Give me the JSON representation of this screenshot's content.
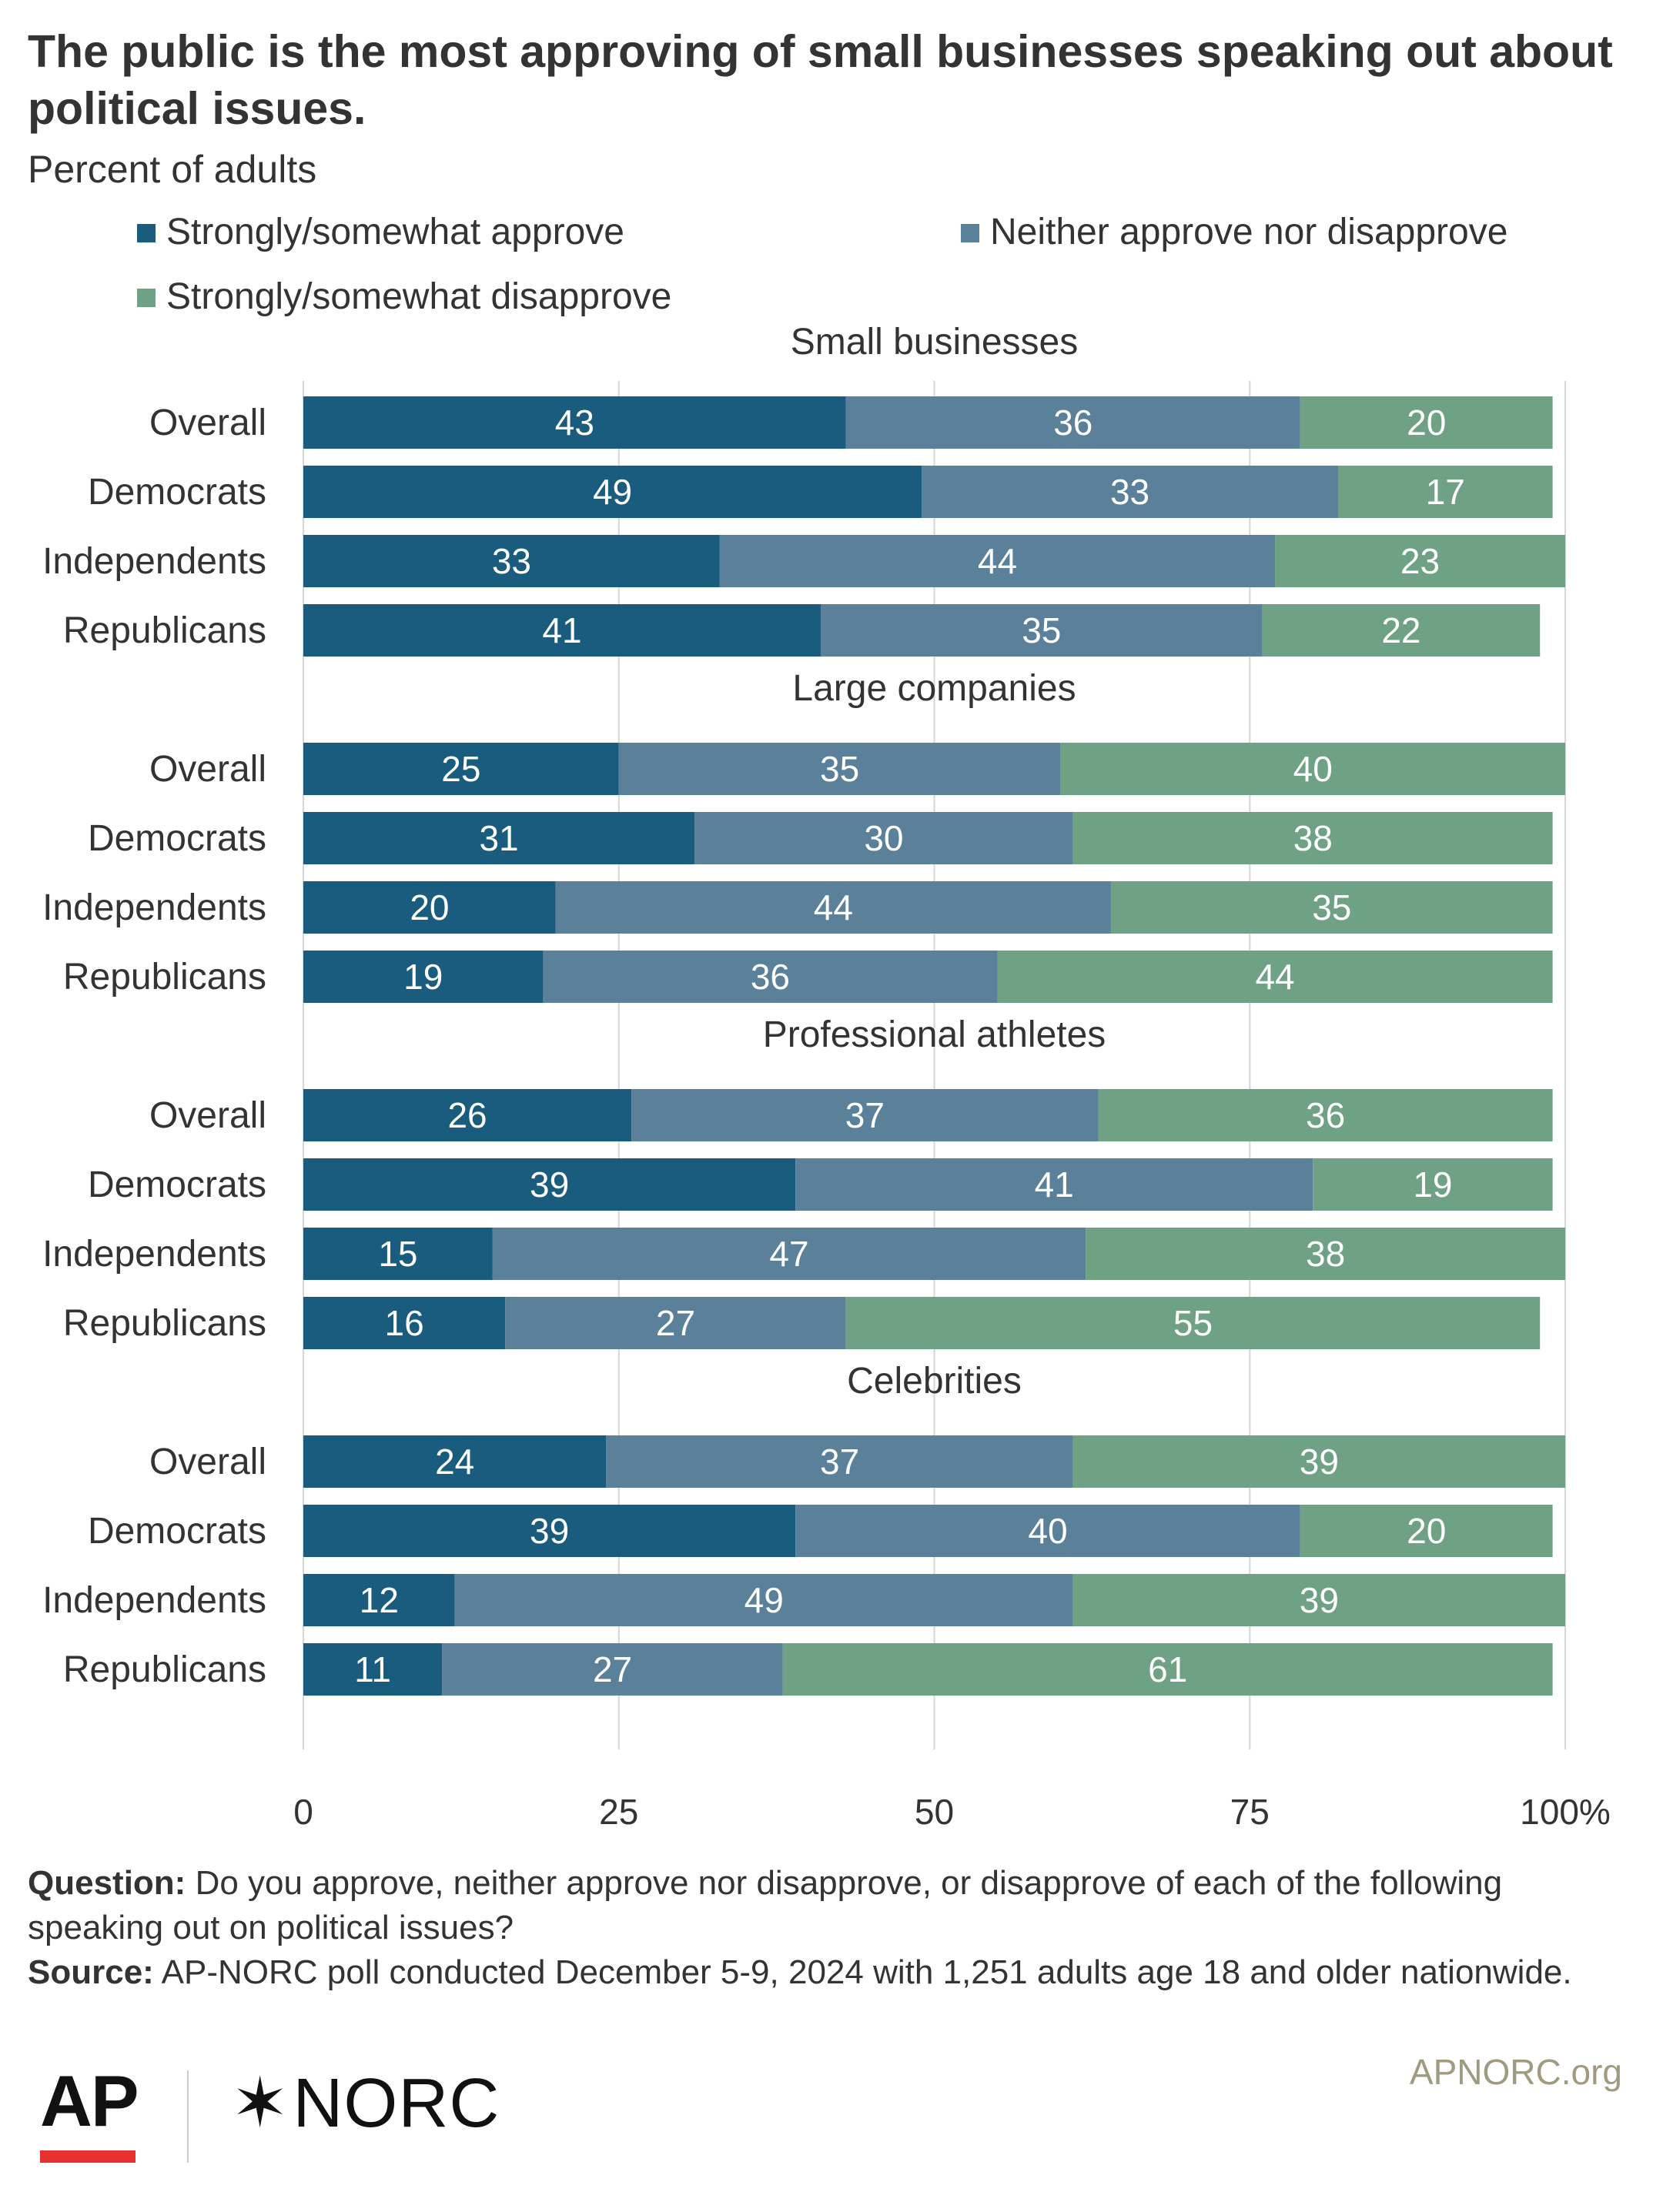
{
  "title": "The public is the most approving of small businesses speaking out about political issues.",
  "subtitle": "Percent of adults",
  "legend": [
    {
      "label": "Strongly/somewhat approve",
      "color": "#1a5c7d"
    },
    {
      "label": "Neither approve nor disapprove",
      "color": "#5b8099"
    },
    {
      "label": "Strongly/somewhat disapprove",
      "color": "#6fa285"
    }
  ],
  "chart_data": {
    "type": "bar",
    "orientation": "horizontal",
    "stacked": true,
    "xlim": [
      0,
      100
    ],
    "x_ticks": [
      "0",
      "25",
      "50",
      "75",
      "100%"
    ],
    "grid": true,
    "legend_position": "top",
    "series_names": [
      "Strongly/somewhat approve",
      "Neither approve nor disapprove",
      "Strongly/somewhat disapprove"
    ],
    "groups": [
      {
        "name": "Small businesses",
        "rows": [
          {
            "label": "Overall",
            "values": [
              43,
              36,
              20
            ]
          },
          {
            "label": "Democrats",
            "values": [
              49,
              33,
              17
            ]
          },
          {
            "label": "Independents",
            "values": [
              33,
              44,
              23
            ]
          },
          {
            "label": "Republicans",
            "values": [
              41,
              35,
              22
            ]
          }
        ]
      },
      {
        "name": "Large companies",
        "rows": [
          {
            "label": "Overall",
            "values": [
              25,
              35,
              40
            ]
          },
          {
            "label": "Democrats",
            "values": [
              31,
              30,
              38
            ]
          },
          {
            "label": "Independents",
            "values": [
              20,
              44,
              35
            ]
          },
          {
            "label": "Republicans",
            "values": [
              19,
              36,
              44
            ]
          }
        ]
      },
      {
        "name": "Professional athletes",
        "rows": [
          {
            "label": "Overall",
            "values": [
              26,
              37,
              36
            ]
          },
          {
            "label": "Democrats",
            "values": [
              39,
              41,
              19
            ]
          },
          {
            "label": "Independents",
            "values": [
              15,
              47,
              38
            ]
          },
          {
            "label": "Republicans",
            "values": [
              16,
              27,
              55
            ]
          }
        ]
      },
      {
        "name": "Celebrities",
        "rows": [
          {
            "label": "Overall",
            "values": [
              24,
              37,
              39
            ]
          },
          {
            "label": "Democrats",
            "values": [
              39,
              40,
              20
            ]
          },
          {
            "label": "Independents",
            "values": [
              12,
              49,
              39
            ]
          },
          {
            "label": "Republicans",
            "values": [
              11,
              27,
              61
            ]
          }
        ]
      }
    ]
  },
  "notes": {
    "question_label": "Question:",
    "question_text": "Do you approve, neither approve nor disapprove, or disapprove of each of the following speaking out on political issues?",
    "source_label": "Source:",
    "source_text": "AP-NORC poll conducted December 5-9, 2024 with 1,251 adults age 18 and older nationwide."
  },
  "branding": {
    "ap_logo": "AP",
    "norc_logo": "NORC",
    "norc_star": "✶",
    "site": "APNORC.org"
  }
}
